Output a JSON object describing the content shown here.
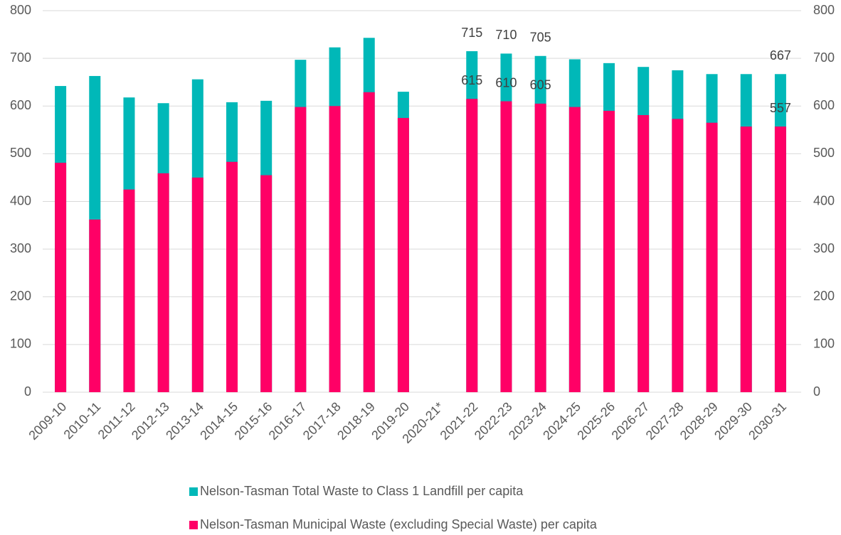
{
  "chart_data": {
    "type": "bar",
    "categories": [
      "2009-10",
      "2010-11",
      "2011-12",
      "2012-13",
      "2013-14",
      "2014-15",
      "2015-16",
      "2016-17",
      "2017-18",
      "2018-19",
      "2019-20",
      "2020-21*",
      "2021-22",
      "2022-23",
      "2023-24",
      "2024-25",
      "2025-26",
      "2026-27",
      "2027-28",
      "2028-29",
      "2029-30",
      "2030-31"
    ],
    "series": [
      {
        "name": "Nelson-Tasman Total Waste to Class 1 Landfill per capita",
        "color": "#00b8b8",
        "values": [
          642,
          663,
          618,
          606,
          656,
          608,
          611,
          697,
          723,
          743,
          630,
          null,
          715,
          710,
          705,
          698,
          690,
          682,
          675,
          667,
          667,
          667
        ],
        "value_labels": [
          null,
          null,
          null,
          null,
          null,
          null,
          null,
          null,
          null,
          null,
          null,
          null,
          "715",
          "710",
          "705",
          null,
          null,
          null,
          null,
          null,
          null,
          "667"
        ]
      },
      {
        "name": "Nelson-Tasman Municipal Waste (excluding Special Waste) per capita",
        "color": "#ff0066",
        "values": [
          481,
          362,
          425,
          459,
          450,
          483,
          455,
          598,
          600,
          629,
          575,
          null,
          615,
          610,
          605,
          598,
          590,
          581,
          573,
          565,
          557,
          557
        ],
        "value_labels": [
          null,
          null,
          null,
          null,
          null,
          null,
          null,
          null,
          null,
          null,
          null,
          null,
          "615",
          "610",
          "605",
          null,
          null,
          null,
          null,
          null,
          null,
          "557"
        ]
      }
    ],
    "ylim": [
      0,
      800
    ],
    "yticks": [
      0,
      100,
      200,
      300,
      400,
      500,
      600,
      700,
      800
    ],
    "y2lim": [
      0,
      800
    ],
    "y2ticks": [
      0,
      100,
      200,
      300,
      400,
      500,
      600,
      700,
      800
    ],
    "grid": true,
    "legend": "bottom"
  }
}
